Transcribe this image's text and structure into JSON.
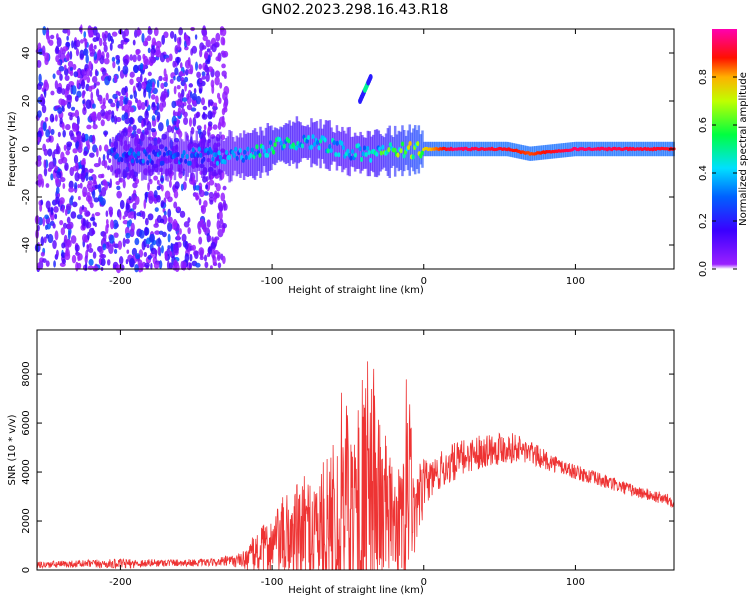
{
  "figure": {
    "title": "GN02.2023.298.16.43.R18"
  },
  "chart_data": [
    {
      "type": "heatmap",
      "title": "GN02.2023.298.16.43.R18",
      "xlabel": "Height of straight line (km)",
      "ylabel": "Frequency (Hz)",
      "xlim": [
        -255,
        165
      ],
      "ylim": [
        -50,
        50
      ],
      "x_ticks": [
        -200,
        -100,
        0,
        100
      ],
      "y_ticks": [
        -40,
        -20,
        0,
        20,
        40
      ],
      "colorbar": {
        "label": "Normalized spectral amplitude",
        "range": [
          0,
          1
        ],
        "ticks": [
          0.0,
          0.2,
          0.4,
          0.6,
          0.8
        ],
        "colors": [
          "#ffffff",
          "#7f00ff",
          "#0000ff",
          "#00ffff",
          "#00ff00",
          "#ffff00",
          "#ff0000",
          "#ff00ff"
        ]
      },
      "features": {
        "noise_region_x": [
          -255,
          -130
        ],
        "ridge": [
          {
            "x": -205,
            "f": -3,
            "amp": 0.25
          },
          {
            "x": -180,
            "f": -3,
            "amp": 0.3
          },
          {
            "x": -150,
            "f": -3,
            "amp": 0.3
          },
          {
            "x": -125,
            "f": -3,
            "amp": 0.35
          },
          {
            "x": -110,
            "f": -2,
            "amp": 0.45
          },
          {
            "x": -95,
            "f": 2,
            "amp": 0.5
          },
          {
            "x": -80,
            "f": 3,
            "amp": 0.45
          },
          {
            "x": -65,
            "f": 2,
            "amp": 0.45
          },
          {
            "x": -50,
            "f": -1,
            "amp": 0.4
          },
          {
            "x": -35,
            "f": -2,
            "amp": 0.45
          },
          {
            "x": -20,
            "f": -1,
            "amp": 0.6
          },
          {
            "x": 0,
            "f": 0,
            "amp": 0.75
          },
          {
            "x": 20,
            "f": 0,
            "amp": 0.95
          },
          {
            "x": 55,
            "f": 0,
            "amp": 0.9
          },
          {
            "x": 70,
            "f": -2,
            "amp": 0.85
          },
          {
            "x": 100,
            "f": 0,
            "amp": 0.95
          },
          {
            "x": 165,
            "f": 0,
            "amp": 0.9
          }
        ],
        "spike": {
          "x": [
            -42,
            -35
          ],
          "f": [
            20,
            30
          ],
          "amp": 0.5
        }
      }
    },
    {
      "type": "line",
      "xlabel": "Height of straight line (km)",
      "ylabel": "SNR (10 * v/v)",
      "xlim": [
        -255,
        165
      ],
      "ylim": [
        0,
        9800
      ],
      "x_ticks": [
        -200,
        -100,
        0,
        100
      ],
      "y_ticks": [
        0,
        2000,
        4000,
        6000,
        8000
      ],
      "color": "#ee3333",
      "envelope": {
        "x": [
          -255,
          -230,
          -200,
          -170,
          -140,
          -120,
          -110,
          -100,
          -90,
          -80,
          -70,
          -60,
          -50,
          -45,
          -40,
          -35,
          -30,
          -25,
          -20,
          -15,
          -12,
          -10,
          -8,
          -5,
          0,
          10,
          20,
          30,
          40,
          50,
          60,
          70,
          80,
          100,
          120,
          140,
          165
        ],
        "base": [
          200,
          250,
          250,
          300,
          300,
          400,
          700,
          1000,
          1300,
          1500,
          1700,
          1900,
          2200,
          2400,
          2600,
          2800,
          3000,
          2500,
          2000,
          1800,
          1600,
          3000,
          2500,
          1800,
          3500,
          4000,
          4400,
          4700,
          4900,
          5000,
          5000,
          4800,
          4500,
          4000,
          3600,
          3200,
          2800
        ],
        "amp": [
          150,
          150,
          200,
          150,
          150,
          300,
          900,
          1200,
          2000,
          2300,
          2400,
          3000,
          4800,
          4200,
          5500,
          6000,
          4500,
          3000,
          2000,
          2400,
          4000,
          6800,
          2000,
          1800,
          1000,
          800,
          800,
          700,
          700,
          700,
          600,
          500,
          400,
          300,
          300,
          250,
          250
        ]
      }
    }
  ]
}
